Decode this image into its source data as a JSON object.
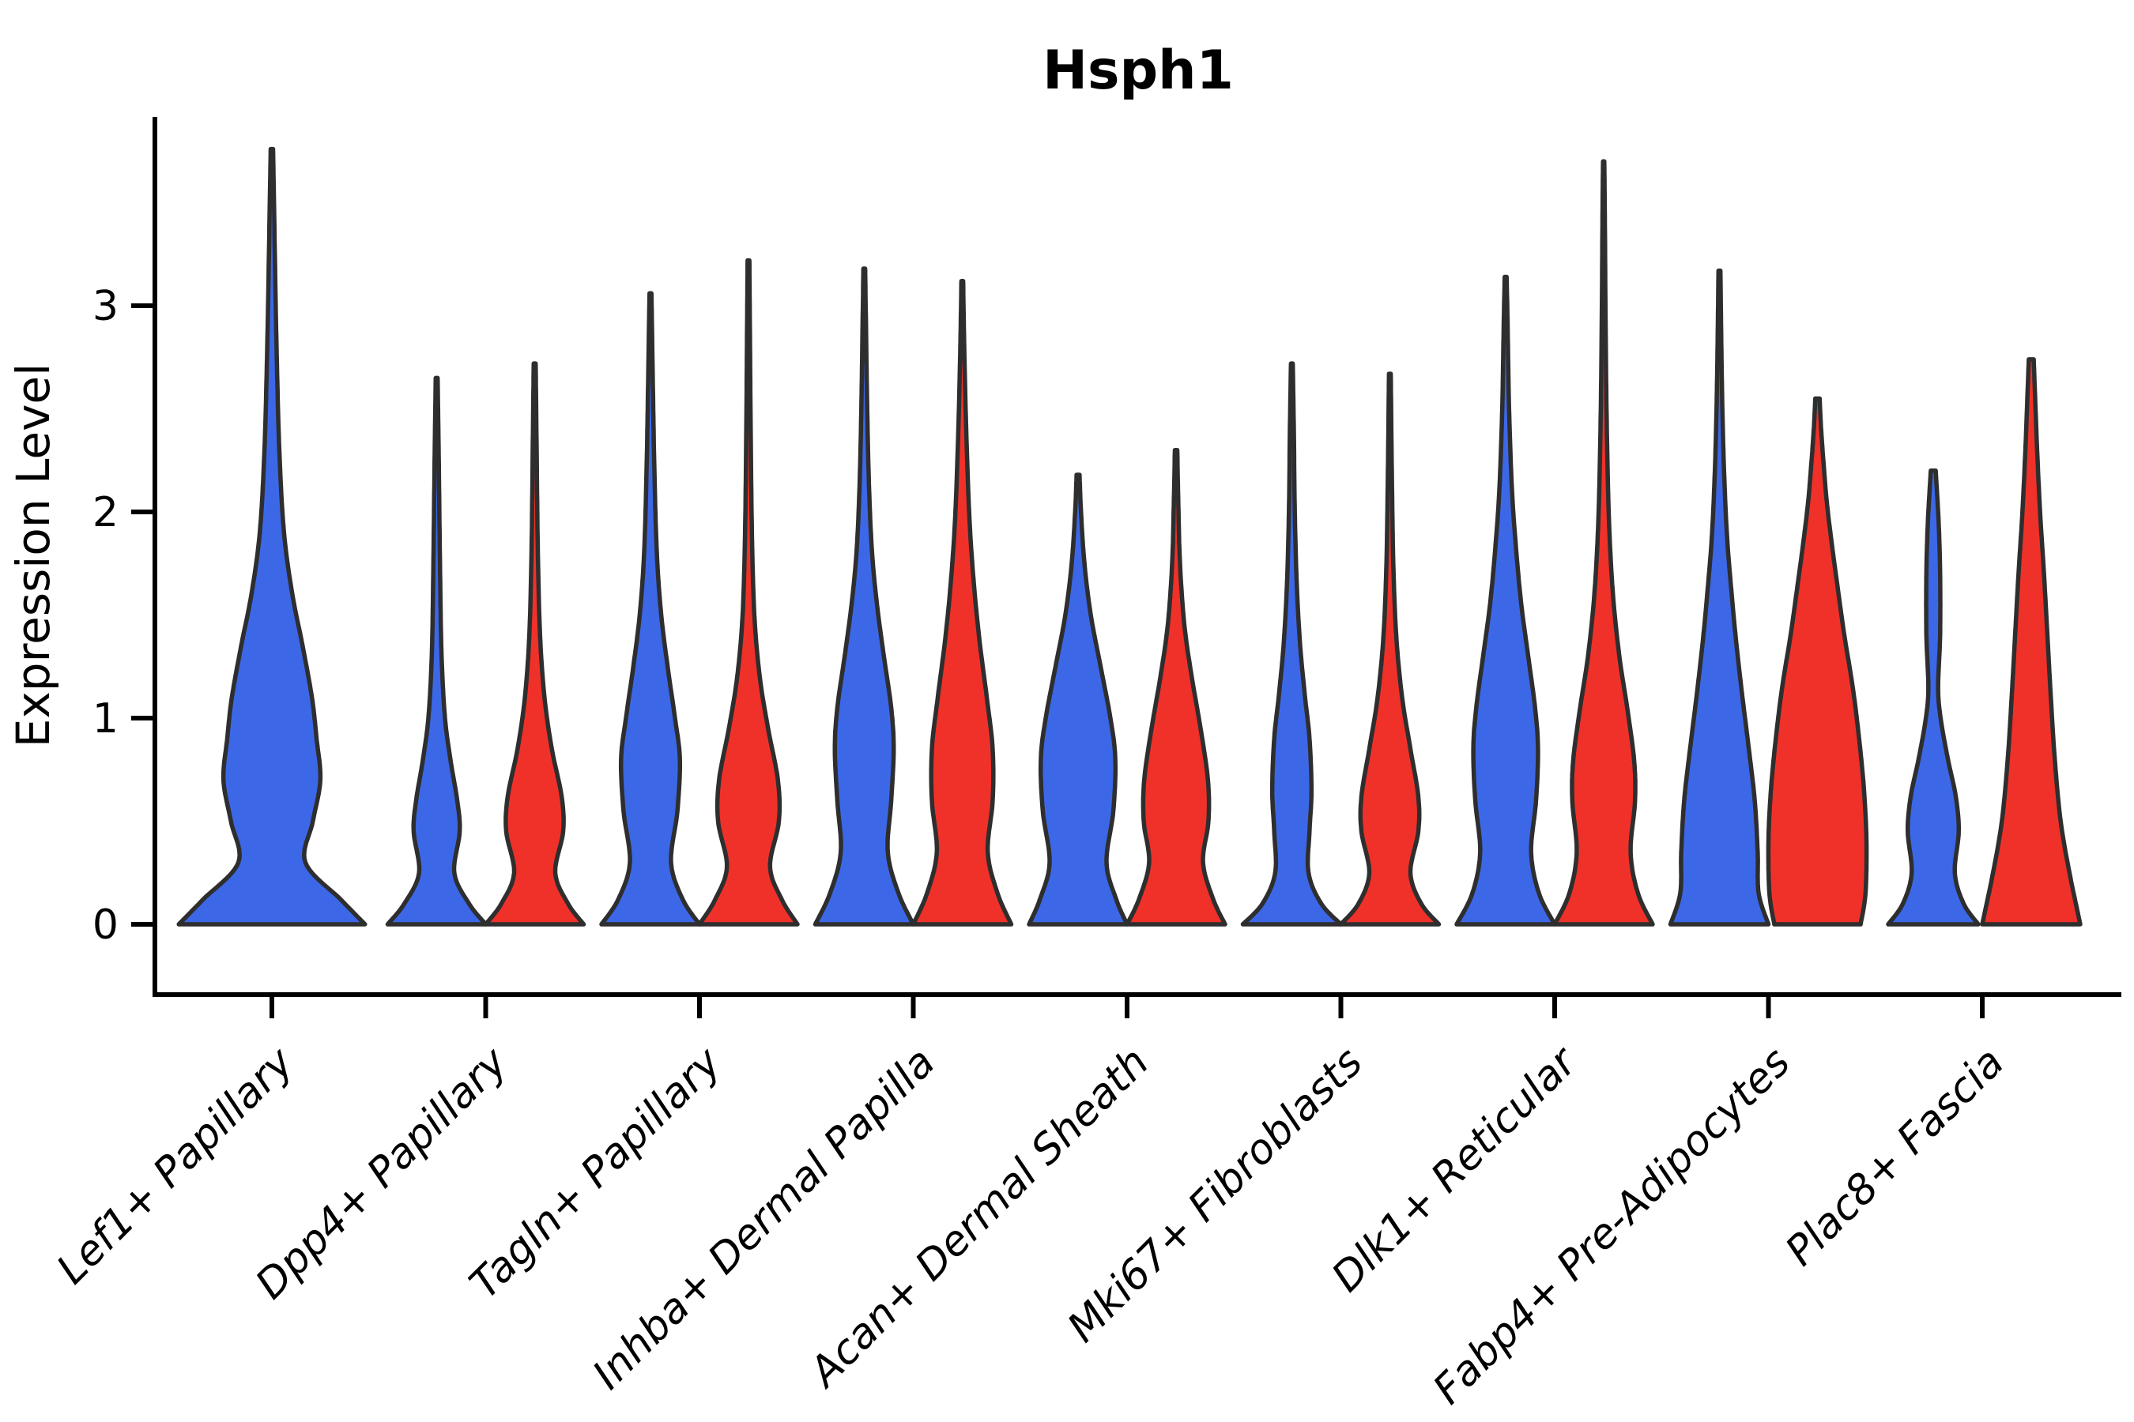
{
  "title": "Hsph1",
  "axes": {
    "ylabel": "Expression Level",
    "yticks": [
      "0",
      "1",
      "2",
      "3"
    ]
  },
  "colors": {
    "violin_blue": "#3C68E8",
    "violin_red": "#F0312A",
    "violin_edge": "#2E2E2E",
    "axis": "#000000",
    "background": "#FFFFFF"
  },
  "chart_data": {
    "type": "violin",
    "title": "Hsph1",
    "xlabel": "",
    "ylabel": "Expression Level",
    "ylim": [
      0,
      3.9
    ],
    "yticks": [
      0,
      1,
      2,
      3
    ],
    "grid": false,
    "legend_position": "none",
    "split_colors": {
      "left_split": "#3C68E8",
      "right_split": "#F0312A"
    },
    "categories": [
      "Lef1+ Papillary",
      "Dpp4+ Papillary",
      "Tagln+ Papillary",
      "Inhba+ Dermal Papilla",
      "Acan+ Dermal Sheath",
      "Mki67+ Fibroblasts",
      "Dlk1+ Reticular",
      "Fabp4+ Pre-Adipocytes",
      "Plac8+ Fascia"
    ],
    "violins": [
      {
        "category": "Lef1+ Papillary",
        "side": "full",
        "color": "blue",
        "max_expression": 3.76,
        "density_profile": [
          [
            0,
            1.0
          ],
          [
            0.12,
            0.74
          ],
          [
            0.3,
            0.36
          ],
          [
            0.5,
            0.44
          ],
          [
            0.7,
            0.52
          ],
          [
            0.9,
            0.48
          ],
          [
            1.1,
            0.43
          ],
          [
            1.35,
            0.33
          ],
          [
            1.6,
            0.22
          ],
          [
            1.9,
            0.13
          ],
          [
            2.3,
            0.08
          ],
          [
            2.8,
            0.05
          ],
          [
            3.3,
            0.03
          ],
          [
            3.76,
            0.013
          ]
        ]
      },
      {
        "category": "Dpp4+ Papillary",
        "side": "left",
        "color": "blue",
        "max_expression": 2.65,
        "density_profile": [
          [
            0,
            1.0
          ],
          [
            0.1,
            0.66
          ],
          [
            0.25,
            0.36
          ],
          [
            0.45,
            0.47
          ],
          [
            0.6,
            0.42
          ],
          [
            0.8,
            0.28
          ],
          [
            1.0,
            0.17
          ],
          [
            1.3,
            0.1
          ],
          [
            1.7,
            0.07
          ],
          [
            2.2,
            0.045
          ],
          [
            2.65,
            0.02
          ]
        ]
      },
      {
        "category": "Dpp4+ Papillary",
        "side": "right",
        "color": "red",
        "max_expression": 2.72,
        "density_profile": [
          [
            0,
            1.0
          ],
          [
            0.1,
            0.68
          ],
          [
            0.25,
            0.42
          ],
          [
            0.45,
            0.58
          ],
          [
            0.62,
            0.55
          ],
          [
            0.85,
            0.35
          ],
          [
            1.1,
            0.2
          ],
          [
            1.4,
            0.11
          ],
          [
            1.8,
            0.065
          ],
          [
            2.3,
            0.04
          ],
          [
            2.72,
            0.02
          ]
        ]
      },
      {
        "category": "Tagln+ Papillary",
        "side": "left",
        "color": "blue",
        "max_expression": 3.06,
        "density_profile": [
          [
            0,
            1.0
          ],
          [
            0.12,
            0.66
          ],
          [
            0.3,
            0.42
          ],
          [
            0.55,
            0.55
          ],
          [
            0.8,
            0.6
          ],
          [
            1.0,
            0.5
          ],
          [
            1.25,
            0.35
          ],
          [
            1.5,
            0.22
          ],
          [
            1.8,
            0.13
          ],
          [
            2.2,
            0.08
          ],
          [
            2.6,
            0.05
          ],
          [
            3.06,
            0.02
          ]
        ]
      },
      {
        "category": "Tagln+ Papillary",
        "side": "right",
        "color": "red",
        "max_expression": 3.22,
        "density_profile": [
          [
            0,
            1.0
          ],
          [
            0.12,
            0.68
          ],
          [
            0.28,
            0.44
          ],
          [
            0.5,
            0.62
          ],
          [
            0.7,
            0.6
          ],
          [
            0.95,
            0.4
          ],
          [
            1.2,
            0.23
          ],
          [
            1.5,
            0.12
          ],
          [
            1.9,
            0.07
          ],
          [
            2.4,
            0.045
          ],
          [
            2.85,
            0.03
          ],
          [
            3.22,
            0.018
          ]
        ]
      },
      {
        "category": "Inhba+ Dermal Papilla",
        "side": "left",
        "color": "blue",
        "max_expression": 3.18,
        "density_profile": [
          [
            0,
            1.0
          ],
          [
            0.15,
            0.7
          ],
          [
            0.35,
            0.48
          ],
          [
            0.6,
            0.55
          ],
          [
            0.85,
            0.6
          ],
          [
            1.05,
            0.55
          ],
          [
            1.3,
            0.4
          ],
          [
            1.55,
            0.26
          ],
          [
            1.8,
            0.16
          ],
          [
            2.1,
            0.1
          ],
          [
            2.5,
            0.06
          ],
          [
            2.9,
            0.035
          ],
          [
            3.18,
            0.018
          ]
        ]
      },
      {
        "category": "Inhba+ Dermal Papilla",
        "side": "right",
        "color": "red",
        "max_expression": 3.12,
        "density_profile": [
          [
            0,
            1.0
          ],
          [
            0.15,
            0.72
          ],
          [
            0.35,
            0.52
          ],
          [
            0.6,
            0.62
          ],
          [
            0.85,
            0.62
          ],
          [
            1.1,
            0.5
          ],
          [
            1.4,
            0.34
          ],
          [
            1.7,
            0.22
          ],
          [
            2.0,
            0.14
          ],
          [
            2.4,
            0.08
          ],
          [
            2.8,
            0.04
          ],
          [
            3.12,
            0.018
          ]
        ]
      },
      {
        "category": "Acan+ Dermal Sheath",
        "side": "left",
        "color": "blue",
        "max_expression": 2.18,
        "density_profile": [
          [
            0,
            1.0
          ],
          [
            0.12,
            0.78
          ],
          [
            0.3,
            0.58
          ],
          [
            0.55,
            0.72
          ],
          [
            0.8,
            0.76
          ],
          [
            1.0,
            0.66
          ],
          [
            1.25,
            0.46
          ],
          [
            1.5,
            0.26
          ],
          [
            1.75,
            0.13
          ],
          [
            2.0,
            0.06
          ],
          [
            2.18,
            0.03
          ]
        ]
      },
      {
        "category": "Acan+ Dermal Sheath",
        "side": "right",
        "color": "red",
        "max_expression": 2.3,
        "density_profile": [
          [
            0,
            1.0
          ],
          [
            0.12,
            0.76
          ],
          [
            0.3,
            0.55
          ],
          [
            0.5,
            0.66
          ],
          [
            0.7,
            0.65
          ],
          [
            0.95,
            0.5
          ],
          [
            1.2,
            0.32
          ],
          [
            1.45,
            0.17
          ],
          [
            1.75,
            0.08
          ],
          [
            2.05,
            0.045
          ],
          [
            2.3,
            0.025
          ]
        ]
      },
      {
        "category": "Mki67+ Fibroblasts",
        "side": "left",
        "color": "blue",
        "max_expression": 2.72,
        "density_profile": [
          [
            0,
            1.0
          ],
          [
            0.1,
            0.6
          ],
          [
            0.25,
            0.34
          ],
          [
            0.45,
            0.36
          ],
          [
            0.65,
            0.4
          ],
          [
            0.9,
            0.36
          ],
          [
            1.1,
            0.27
          ],
          [
            1.35,
            0.17
          ],
          [
            1.65,
            0.1
          ],
          [
            2.0,
            0.06
          ],
          [
            2.4,
            0.04
          ],
          [
            2.72,
            0.018
          ]
        ]
      },
      {
        "category": "Mki67+ Fibroblasts",
        "side": "right",
        "color": "red",
        "max_expression": 2.67,
        "density_profile": [
          [
            0,
            1.0
          ],
          [
            0.1,
            0.64
          ],
          [
            0.25,
            0.42
          ],
          [
            0.45,
            0.58
          ],
          [
            0.62,
            0.58
          ],
          [
            0.85,
            0.42
          ],
          [
            1.1,
            0.25
          ],
          [
            1.4,
            0.13
          ],
          [
            1.75,
            0.07
          ],
          [
            2.2,
            0.04
          ],
          [
            2.67,
            0.018
          ]
        ]
      },
      {
        "category": "Dlk1+ Reticular",
        "side": "left",
        "color": "blue",
        "max_expression": 3.14,
        "density_profile": [
          [
            0,
            1.0
          ],
          [
            0.15,
            0.68
          ],
          [
            0.35,
            0.52
          ],
          [
            0.6,
            0.62
          ],
          [
            0.85,
            0.66
          ],
          [
            1.05,
            0.6
          ],
          [
            1.3,
            0.46
          ],
          [
            1.55,
            0.32
          ],
          [
            1.8,
            0.22
          ],
          [
            2.1,
            0.13
          ],
          [
            2.5,
            0.07
          ],
          [
            2.9,
            0.04
          ],
          [
            3.14,
            0.02
          ]
        ]
      },
      {
        "category": "Dlk1+ Reticular",
        "side": "right",
        "color": "red",
        "max_expression": 3.7,
        "density_profile": [
          [
            0,
            1.0
          ],
          [
            0.15,
            0.7
          ],
          [
            0.35,
            0.55
          ],
          [
            0.6,
            0.64
          ],
          [
            0.8,
            0.62
          ],
          [
            1.05,
            0.48
          ],
          [
            1.3,
            0.32
          ],
          [
            1.6,
            0.19
          ],
          [
            1.95,
            0.11
          ],
          [
            2.4,
            0.065
          ],
          [
            2.9,
            0.04
          ],
          [
            3.4,
            0.025
          ],
          [
            3.7,
            0.013
          ]
        ]
      },
      {
        "category": "Fabp4+ Pre-Adipocytes",
        "side": "left",
        "color": "blue",
        "max_expression": 3.17,
        "density_profile": [
          [
            0,
            1.0
          ],
          [
            0.15,
            0.8
          ],
          [
            0.35,
            0.78
          ],
          [
            0.6,
            0.72
          ],
          [
            0.85,
            0.6
          ],
          [
            1.1,
            0.47
          ],
          [
            1.35,
            0.35
          ],
          [
            1.6,
            0.25
          ],
          [
            1.9,
            0.15
          ],
          [
            2.3,
            0.08
          ],
          [
            2.7,
            0.045
          ],
          [
            3.17,
            0.02
          ]
        ]
      },
      {
        "category": "Fabp4+ Pre-Adipocytes",
        "side": "right",
        "color": "red",
        "max_expression": 2.55,
        "density_profile": [
          [
            0,
            0.88
          ],
          [
            0.15,
            0.98
          ],
          [
            0.4,
            1.0
          ],
          [
            0.65,
            0.95
          ],
          [
            0.9,
            0.85
          ],
          [
            1.15,
            0.72
          ],
          [
            1.4,
            0.55
          ],
          [
            1.62,
            0.42
          ],
          [
            1.85,
            0.29
          ],
          [
            2.05,
            0.19
          ],
          [
            2.25,
            0.12
          ],
          [
            2.42,
            0.07
          ],
          [
            2.55,
            0.045
          ]
        ]
      },
      {
        "category": "Plac8+ Fascia",
        "side": "left",
        "color": "blue",
        "max_expression": 2.2,
        "density_profile": [
          [
            0,
            0.92
          ],
          [
            0.1,
            0.62
          ],
          [
            0.25,
            0.44
          ],
          [
            0.45,
            0.52
          ],
          [
            0.62,
            0.46
          ],
          [
            0.8,
            0.3
          ],
          [
            1.0,
            0.15
          ],
          [
            1.15,
            0.1
          ],
          [
            1.4,
            0.14
          ],
          [
            1.7,
            0.14
          ],
          [
            1.95,
            0.11
          ],
          [
            2.2,
            0.05
          ]
        ]
      },
      {
        "category": "Plac8+ Fascia",
        "side": "right",
        "color": "red",
        "max_expression": 2.74,
        "density_profile": [
          [
            0,
            1.0
          ],
          [
            0.25,
            0.78
          ],
          [
            0.5,
            0.6
          ],
          [
            0.8,
            0.48
          ],
          [
            1.1,
            0.4
          ],
          [
            1.4,
            0.33
          ],
          [
            1.7,
            0.26
          ],
          [
            2.0,
            0.18
          ],
          [
            2.3,
            0.12
          ],
          [
            2.55,
            0.08
          ],
          [
            2.74,
            0.05
          ]
        ]
      }
    ]
  }
}
